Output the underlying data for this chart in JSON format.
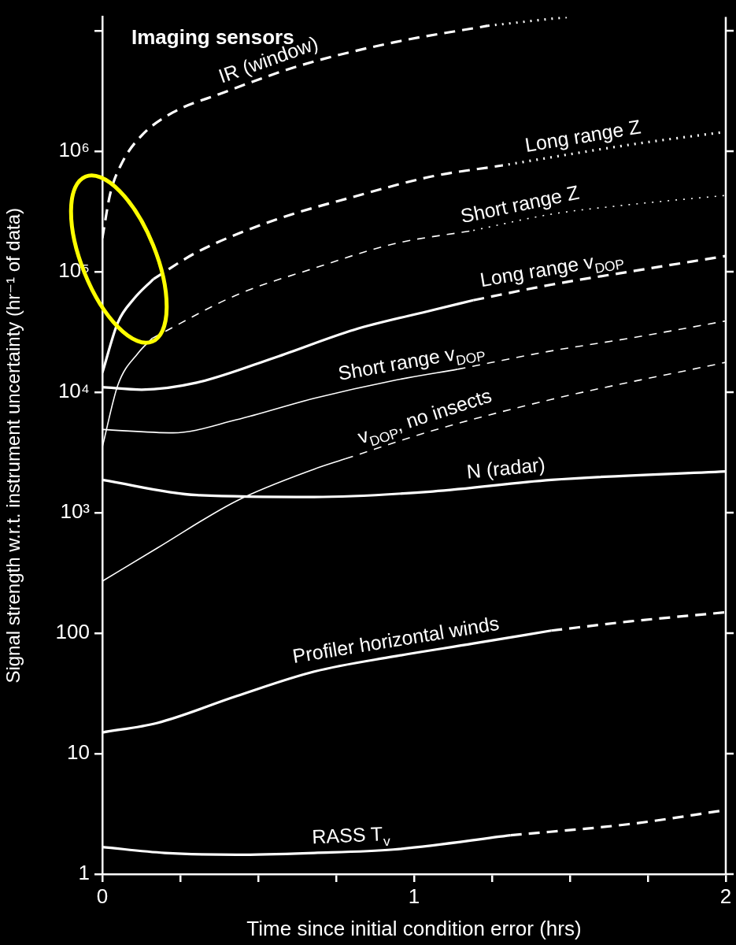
{
  "chart_data": {
    "type": "line",
    "title": "Imaging sensors",
    "xlabel": "Time since initial condition error (hrs)",
    "ylabel": "Signal strength w.r.t. instrument uncertainty (hr⁻¹ of data)",
    "log": "y",
    "xlim": [
      0,
      2
    ],
    "xticks": [
      0,
      {
        "value": 0.25,
        "label": null
      },
      {
        "value": 0.5,
        "label": null
      },
      {
        "value": 0.75,
        "label": null
      },
      1,
      {
        "value": 1.25,
        "label": null
      },
      {
        "value": 1.5,
        "label": null
      },
      {
        "value": 1.75,
        "label": null
      },
      2
    ],
    "ylim": [
      1,
      13000000
    ],
    "yticks": [
      1,
      10,
      100,
      {
        "value": 1000,
        "label": "10³"
      },
      {
        "value": 10000,
        "label": "10⁴"
      },
      {
        "value": 100000,
        "label": "10⁵"
      },
      {
        "value": 1000000,
        "label": "10⁶"
      },
      {
        "value": 10000000,
        "label": null
      }
    ],
    "series": [
      {
        "name": "IR (window)",
        "color": "#ffffff",
        "line_style": "dashed",
        "x": [
          0,
          0.025,
          0.063,
          0.126,
          0.227,
          0.379,
          0.63,
          0.934,
          1.237
        ],
        "values": [
          190000,
          440000,
          800000,
          1350000,
          2100000,
          3000000,
          5100000,
          8000000,
          11000000
        ]
      },
      {
        "color": "#ffffff",
        "line_style": "dotted",
        "x": [
          1.237,
          1.49
        ],
        "values": [
          11000000,
          13000000
        ]
      },
      {
        "color": "#ffffff",
        "line_style": "solid",
        "x": [
          0,
          0.05,
          0.1,
          0.164
        ],
        "values": [
          14500,
          38000,
          59000,
          87000
        ]
      },
      {
        "color": "#ffffff",
        "line_style": "dashed",
        "x": [
          0.164,
          0.303,
          0.556,
          0.808,
          1.06,
          1.28
        ],
        "values": [
          87000,
          145000,
          270000,
          420000,
          620000,
          760000
        ]
      },
      {
        "name": "Long range Z",
        "color": "#ffffff",
        "line_style": "dotted",
        "x": [
          1.28,
          1.69,
          2.0
        ],
        "values": [
          760000,
          1130000,
          1450000
        ]
      },
      {
        "color": "#ffffff",
        "line_style": "solid",
        "x": [
          0,
          0.05,
          0.114,
          0.16
        ],
        "values": [
          3500,
          11500,
          21000,
          28000
        ]
      },
      {
        "color": "#ffffff",
        "line_style": "dashed",
        "x": [
          0.16,
          0.43,
          0.68,
          0.934,
          1.19
        ],
        "values": [
          28000,
          64000,
          107000,
          170000,
          220000
        ]
      },
      {
        "name": "Short range Z",
        "color": "#ffffff",
        "line_style": "dotted",
        "x": [
          1.19,
          1.44,
          1.69,
          2.0
        ],
        "values": [
          220000,
          300000,
          360000,
          430000
        ]
      },
      {
        "color": "#ffffff",
        "line_style": "solid",
        "x": [
          0,
          0.126,
          0.303,
          0.556,
          0.808,
          1.06,
          1.19
        ],
        "values": [
          11000,
          10500,
          12000,
          19500,
          33000,
          48000,
          58000
        ]
      },
      {
        "name": "Long range v$_{DOP}$",
        "color": "#ffffff",
        "line_style": "dashed",
        "x": [
          1.19,
          1.44,
          1.69,
          2.0
        ],
        "values": [
          58000,
          78000,
          100000,
          135000
        ]
      },
      {
        "name": "Short range v$_{DOP}$",
        "color": "#ffffff",
        "line_style": "solid",
        "x": [
          0,
          0.227,
          0.43,
          0.68,
          0.934,
          1.14
        ],
        "values": [
          4900,
          4600,
          5900,
          8900,
          12500,
          15500
        ]
      },
      {
        "color": "#ffffff",
        "line_style": "dashed",
        "x": [
          1.14,
          1.44,
          1.69,
          2.0
        ],
        "values": [
          15500,
          22000,
          28000,
          39000
        ]
      },
      {
        "color": "#ffffff",
        "line_style": "solid",
        "x": [
          0,
          0.177,
          0.43,
          0.68,
          0.78
        ],
        "values": [
          270,
          510,
          1250,
          2300,
          2800
        ]
      },
      {
        "name": "v$_{DOP}$, no insects",
        "color": "#ffffff",
        "line_style": "dashed",
        "x": [
          0.78,
          1.06,
          1.44,
          2.0
        ],
        "values": [
          2800,
          4800,
          8700,
          17700
        ]
      },
      {
        "name": "N (radar)",
        "color": "#ffffff",
        "line_style": "solid",
        "x": [
          0,
          0.303,
          0.68,
          1.06,
          1.44,
          2.0
        ],
        "values": [
          1870,
          1400,
          1350,
          1500,
          1870,
          2200
        ]
      },
      {
        "name": "Profiler horizontal winds",
        "color": "#ffffff",
        "line_style": "solid",
        "x": [
          0,
          0.177,
          0.43,
          0.68,
          0.934,
          1.19,
          1.44
        ],
        "values": [
          15,
          18,
          30,
          48,
          64,
          82,
          105
        ]
      },
      {
        "color": "#ffffff",
        "line_style": "dashed",
        "x": [
          1.44,
          1.69,
          2.0
        ],
        "values": [
          105,
          125,
          149
        ]
      },
      {
        "name": "RASS T$_{v}$",
        "color": "#ffffff",
        "line_style": "solid",
        "x": [
          0,
          0.2,
          0.43,
          0.68,
          0.934,
          1.31
        ],
        "values": [
          1.68,
          1.5,
          1.45,
          1.5,
          1.6,
          2.1
        ]
      },
      {
        "color": "#ffffff",
        "line_style": "dashed",
        "x": [
          1.31,
          1.69,
          2.0
        ],
        "values": [
          2.1,
          2.6,
          3.4
        ]
      }
    ]
  }
}
